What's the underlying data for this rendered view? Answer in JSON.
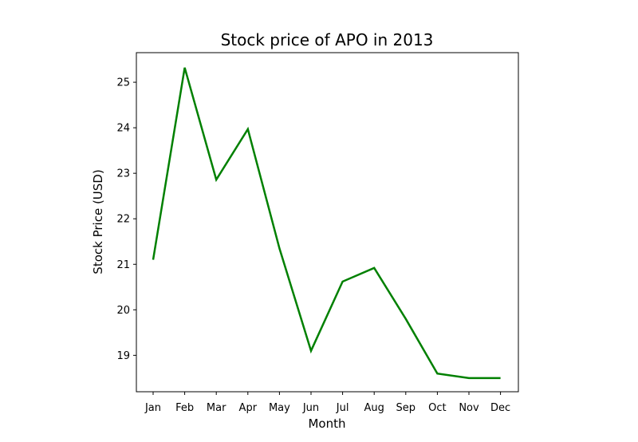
{
  "chart_data": {
    "type": "line",
    "title": "Stock price of APO in 2013",
    "xlabel": "Month",
    "ylabel": "Stock Price (USD)",
    "categories": [
      "Jan",
      "Feb",
      "Mar",
      "Apr",
      "May",
      "Jun",
      "Jul",
      "Aug",
      "Sep",
      "Oct",
      "Nov",
      "Dec"
    ],
    "series": [
      {
        "values": [
          21.1,
          25.32,
          22.86,
          23.97,
          21.35,
          19.1,
          20.62,
          20.92,
          19.8,
          18.6,
          18.5,
          18.5
        ],
        "color": "#008000"
      }
    ],
    "yticks": [
      19,
      20,
      21,
      22,
      23,
      24,
      25
    ],
    "ylim": [
      18.2,
      25.65
    ],
    "grid": false,
    "legend": "none"
  }
}
